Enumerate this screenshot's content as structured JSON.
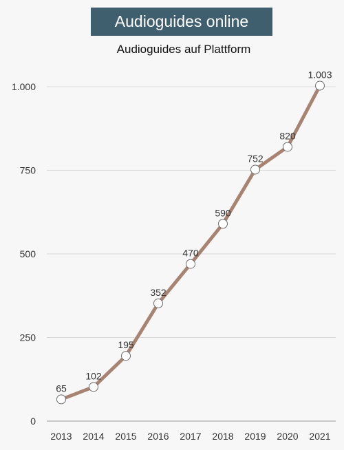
{
  "header": {
    "title": "Audioguides online",
    "subtitle": "Audioguides auf Plattform"
  },
  "colors": {
    "title_bg": "#3f5f6f",
    "line": "#a88372",
    "marker_fill": "#ffffff",
    "marker_stroke": "#6b6b6b",
    "grid": "#d9d9d9"
  },
  "chart_data": {
    "type": "line",
    "title": "Audioguides auf Plattform",
    "categories": [
      "2013",
      "2014",
      "2015",
      "2016",
      "2017",
      "2018",
      "2019",
      "2020",
      "2021"
    ],
    "series": [
      {
        "values": [
          65,
          102,
          195,
          352,
          470,
          590,
          752,
          820,
          1003
        ]
      }
    ],
    "data_labels": [
      "65",
      "102",
      "195",
      "352",
      "470",
      "590",
      "752",
      "820",
      "1.003"
    ],
    "y_ticks": [
      0,
      250,
      500,
      750,
      1000
    ],
    "y_tick_labels": [
      "0",
      "250",
      "500",
      "750",
      "1.000"
    ],
    "ylim": [
      0,
      1000
    ],
    "grid": "horizontal",
    "legend": "none"
  }
}
